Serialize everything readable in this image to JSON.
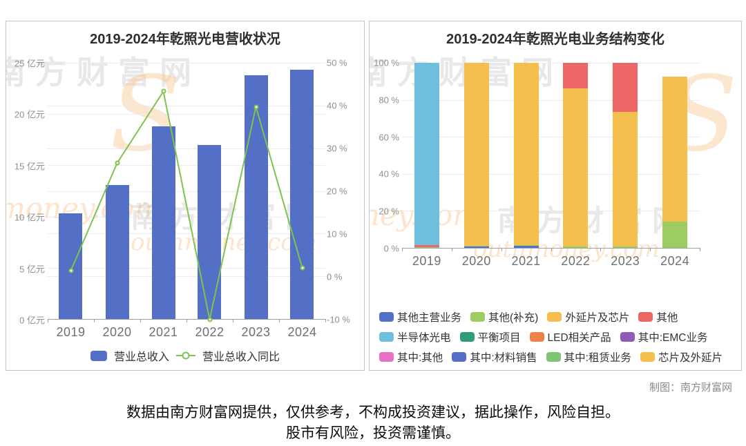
{
  "page": {
    "credit": "制图：南方财富网",
    "disclaimer_line1": "数据由南方财富网提供，仅供参考，不构成投资建议，据此操作，风险自担。",
    "disclaimer_line2": "股市有风险，投资需谨慎。",
    "watermark_cn": "南方财富网",
    "watermark_en": "outhmoney.com",
    "watermark_s": "S"
  },
  "chart_data": [
    {
      "id": "revenue",
      "type": "bar",
      "title": "2019-2024年乾照光电营收状况",
      "categories": [
        "2019",
        "2020",
        "2021",
        "2022",
        "2023",
        "2024"
      ],
      "series": [
        {
          "name": "营业总收入",
          "type": "bar",
          "unit": "亿元",
          "color": "#5470c6",
          "values": [
            10.3,
            13.1,
            18.8,
            17.0,
            23.8,
            24.3
          ]
        },
        {
          "name": "营业总收入同比",
          "type": "line",
          "unit": "%",
          "color": "#7dc34f",
          "values": [
            1.3,
            26.5,
            43.3,
            -10.1,
            39.7,
            2.0
          ]
        }
      ],
      "y_left": {
        "min": 0,
        "max": 25,
        "grid": true,
        "ticks": [
          {
            "value": 25,
            "label": "25 亿元"
          },
          {
            "value": 20,
            "label": "20 亿元"
          },
          {
            "value": 15,
            "label": "15 亿元"
          },
          {
            "value": 10,
            "label": "10 亿元"
          },
          {
            "value": 5,
            "label": "5 亿元"
          },
          {
            "value": 0,
            "label": "0 亿元"
          }
        ]
      },
      "y_right": {
        "min": -10,
        "max": 50,
        "grid": true,
        "ticks": [
          {
            "value": 50,
            "label": "50 %"
          },
          {
            "value": 40,
            "label": "40 %"
          },
          {
            "value": 30,
            "label": "30 %"
          },
          {
            "value": 20,
            "label": "20 %"
          },
          {
            "value": 10,
            "label": "10 %"
          },
          {
            "value": 0,
            "label": "0 %"
          },
          {
            "value": -10,
            "label": "-10 %"
          }
        ]
      }
    },
    {
      "id": "structure",
      "type": "stacked-bar-percent",
      "title": "2019-2024年乾照光电业务结构变化",
      "categories": [
        "2019",
        "2020",
        "2021",
        "2022",
        "2023",
        "2024"
      ],
      "y": {
        "min": 0,
        "max": 100,
        "grid": true,
        "ticks": [
          {
            "value": 100,
            "label": "100 %"
          },
          {
            "value": 80,
            "label": "80 %"
          },
          {
            "value": 60,
            "label": "60 %"
          },
          {
            "value": 40,
            "label": "40 %"
          },
          {
            "value": 20,
            "label": "20 %"
          },
          {
            "value": 0,
            "label": "0 %"
          }
        ]
      },
      "legend_rows": [
        [
          {
            "name": "其他主营业务",
            "color": "#5470c6"
          },
          {
            "name": "其他(补充)",
            "color": "#9ccc62"
          },
          {
            "name": "外延片及芯片",
            "color": "#f5bf4d"
          },
          {
            "name": "其他",
            "color": "#ec6666"
          }
        ],
        [
          {
            "name": "半导体光电",
            "color": "#6ebedd"
          },
          {
            "name": "平衡项目",
            "color": "#2f9d76"
          },
          {
            "name": "LED相关产品",
            "color": "#f08048"
          },
          {
            "name": "其中:EMC业务",
            "color": "#8e5bb8"
          }
        ],
        [
          {
            "name": "其中:其他",
            "color": "#e871c3"
          },
          {
            "name": "其中:材料销售",
            "color": "#5470c6"
          },
          {
            "name": "其中:租赁业务",
            "color": "#7fc575"
          },
          {
            "name": "芯片及外延片",
            "color": "#f5bf4d"
          }
        ]
      ],
      "stacks": [
        {
          "category": "2019",
          "segments": [
            {
              "name": "其他(补充)",
              "value": 0.5
            },
            {
              "name": "其他",
              "value": 0.9
            },
            {
              "name": "半导体光电",
              "value": 98.6
            }
          ]
        },
        {
          "category": "2020",
          "segments": [
            {
              "name": "其他主营业务",
              "value": 0.8
            },
            {
              "name": "其他(补充)",
              "value": 0.5
            },
            {
              "name": "外延片及芯片",
              "value": 98.7
            }
          ]
        },
        {
          "category": "2021",
          "segments": [
            {
              "name": "其他主营业务",
              "value": 1.0
            },
            {
              "name": "其他(补充)",
              "value": 0.6
            },
            {
              "name": "外延片及芯片",
              "value": 98.4
            }
          ]
        },
        {
          "category": "2022",
          "segments": [
            {
              "name": "其他(补充)",
              "value": 0.8
            },
            {
              "name": "外延片及芯片",
              "value": 85.4
            },
            {
              "name": "其他",
              "value": 13.8
            }
          ]
        },
        {
          "category": "2023",
          "segments": [
            {
              "name": "其他(补充)",
              "value": 0.8
            },
            {
              "name": "外延片及芯片",
              "value": 72.6
            },
            {
              "name": "其他",
              "value": 26.6
            }
          ]
        },
        {
          "category": "2024",
          "segments": [
            {
              "name": "其他(补充)",
              "value": 14.3
            },
            {
              "name": "芯片及外延片",
              "value": 78.1
            }
          ]
        }
      ]
    }
  ]
}
